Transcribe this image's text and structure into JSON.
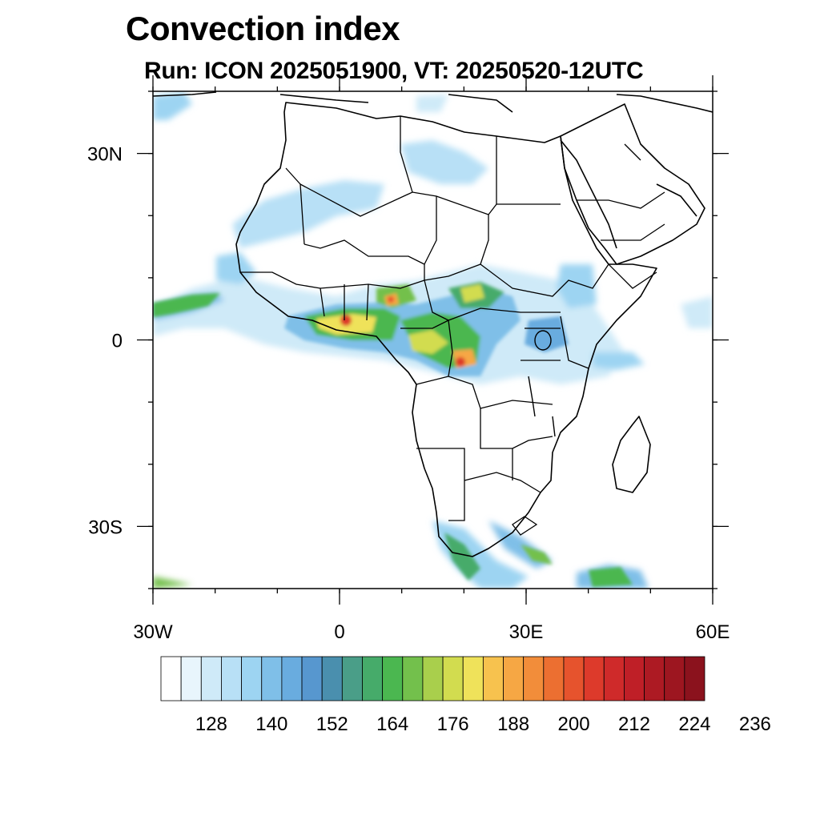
{
  "title": "Convection index",
  "subtitle": "Run: ICON 2025051900,  VT: 20250520-12UTC",
  "map": {
    "region": "Africa",
    "extent": {
      "lon": [
        -30,
        60
      ],
      "lat": [
        -40,
        40
      ]
    },
    "lat_ticks": [
      {
        "value": 30,
        "label": "30N"
      },
      {
        "value": 0,
        "label": "0"
      },
      {
        "value": -30,
        "label": "30S"
      }
    ],
    "lon_ticks": [
      {
        "value": -30,
        "label": "30W"
      },
      {
        "value": 0,
        "label": "0"
      },
      {
        "value": 30,
        "label": "30E"
      },
      {
        "value": 60,
        "label": "60E"
      }
    ]
  },
  "colorbar": {
    "levels": [
      128,
      140,
      152,
      164,
      176,
      188,
      200,
      212,
      224,
      236
    ],
    "colors": [
      "#ffffff",
      "#e8f5fc",
      "#cfeaf8",
      "#b8e0f6",
      "#9dd4f2",
      "#7fbfe8",
      "#69acdf",
      "#5797cf",
      "#4a8fae",
      "#4a9e88",
      "#46ab6a",
      "#4bb750",
      "#73c04c",
      "#a9cf4c",
      "#d2dc4f",
      "#efe25a",
      "#f7c24e",
      "#f6a744",
      "#f28d3a",
      "#ec6f31",
      "#e6532d",
      "#dd3a2b",
      "#cf2a2a",
      "#bf1f27",
      "#ad1a23",
      "#9d1620",
      "#8b121d"
    ]
  }
}
